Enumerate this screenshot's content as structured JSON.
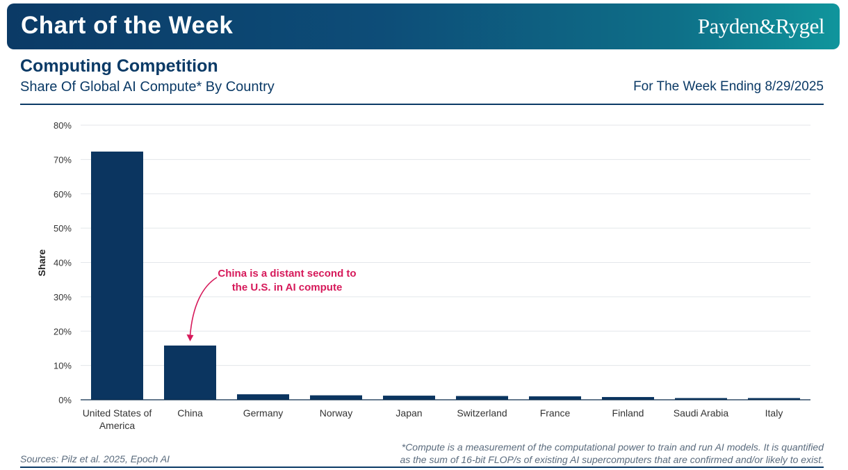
{
  "header": {
    "banner_title": "Chart of the Week",
    "brand": "Payden&Rygel"
  },
  "titles": {
    "title": "Computing Competition",
    "subtitle": "Share Of Global AI Compute* By Country",
    "week": "For The Week Ending 8/29/2025"
  },
  "footer": {
    "sources": "Sources: Pilz et al. 2025, Epoch AI",
    "note_line1": "*Compute is a measurement of the computational power to train and run AI models. It is quantified",
    "note_line2": "as the sum of 16-bit FLOP/s of existing AI supercomputers that are confirmed and/or likely to exist."
  },
  "colors": {
    "bar": "#0b3560",
    "annotation": "#d6195a",
    "grid": "#e3e6ea",
    "axis": "#0b2a4a"
  },
  "chart_data": {
    "type": "bar",
    "title": "",
    "xlabel": "",
    "ylabel": "Share",
    "ylim": [
      0,
      80
    ],
    "yticks": [
      0,
      10,
      20,
      30,
      40,
      50,
      60,
      70,
      80
    ],
    "ytick_labels": [
      "0%",
      "10%",
      "20%",
      "30%",
      "40%",
      "50%",
      "60%",
      "70%",
      "80%"
    ],
    "grid": true,
    "categories": [
      [
        "United States of",
        "America"
      ],
      [
        "China"
      ],
      [
        "Germany"
      ],
      [
        "Norway"
      ],
      [
        "Japan"
      ],
      [
        "Switzerland"
      ],
      [
        "France"
      ],
      [
        "Finland"
      ],
      [
        "Saudi Arabia"
      ],
      [
        "Italy"
      ]
    ],
    "values": [
      72.3,
      15.8,
      1.6,
      1.3,
      1.2,
      1.1,
      1.0,
      0.8,
      0.5,
      0.5
    ],
    "annotation": {
      "category_index": 1,
      "lines": [
        "China is a distant second to",
        "the U.S. in AI compute"
      ]
    }
  }
}
